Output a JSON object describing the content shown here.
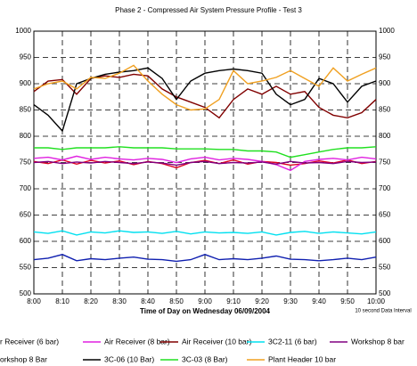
{
  "chart_data": {
    "type": "line",
    "title": "Phase 2 - Compressed Air System Pressure Profile  -  Test 3",
    "x_label": "Time of Day on Wednesday 06/09/2004",
    "note": "10 second Data Interval",
    "categories": [
      "8:00",
      null,
      "8:10",
      null,
      "8:20",
      null,
      "8:30",
      null,
      "8:40",
      null,
      "8:50",
      null,
      "9:00",
      null,
      "9:10",
      null,
      "9:20",
      null,
      "9:30",
      null,
      "9:40",
      null,
      "9:50",
      null,
      "10:00"
    ],
    "ylim": [
      500,
      1000
    ],
    "yticks": [
      500,
      550,
      600,
      650,
      700,
      750,
      800,
      850,
      900,
      950,
      1000
    ],
    "grid": true,
    "series": [
      {
        "name": "r Receiver (6 bar)",
        "color": "#e00020",
        "values": [
          752,
          748,
          755,
          747,
          754,
          749,
          753,
          746,
          752,
          748,
          740,
          750,
          754,
          748,
          755,
          747,
          752,
          750,
          745,
          748,
          753,
          749,
          755,
          748,
          752
        ]
      },
      {
        "name": "Air Receiver (8 bar)",
        "color": "#e020e0",
        "values": [
          758,
          760,
          755,
          762,
          756,
          760,
          757,
          755,
          758,
          756,
          750,
          757,
          760,
          755,
          758,
          756,
          752,
          746,
          735,
          752,
          756,
          758,
          755,
          760,
          757
        ]
      },
      {
        "name": "Air Receiver (10 bar)",
        "color": "#800000",
        "values": [
          885,
          905,
          908,
          880,
          910,
          915,
          912,
          918,
          915,
          890,
          875,
          865,
          855,
          835,
          870,
          890,
          880,
          895,
          880,
          885,
          855,
          840,
          835,
          845,
          870
        ]
      },
      {
        "name": "3C2-11 (6 bar)",
        "color": "#00e0f0",
        "values": [
          618,
          615,
          620,
          612,
          618,
          616,
          620,
          617,
          618,
          615,
          619,
          614,
          618,
          616,
          617,
          615,
          618,
          612,
          617,
          619,
          615,
          618,
          616,
          614,
          618
        ]
      },
      {
        "name": "Workshop 8 bar",
        "color": "#800080",
        "values": [
          750,
          752,
          748,
          751,
          749,
          752,
          750,
          748,
          751,
          749,
          745,
          750,
          752,
          748,
          750,
          749,
          751,
          747,
          752,
          749,
          750,
          748,
          752,
          750,
          751
        ]
      },
      {
        "name": "orkshop 8 Bar",
        "color": "#1020b0",
        "values": [
          565,
          568,
          575,
          563,
          567,
          565,
          568,
          570,
          566,
          565,
          562,
          565,
          575,
          565,
          567,
          565,
          568,
          572,
          566,
          565,
          563,
          565,
          568,
          565,
          570
        ]
      },
      {
        "name": "3C-06 (10 Bar)",
        "color": "#000000",
        "values": [
          860,
          840,
          810,
          900,
          910,
          918,
          922,
          925,
          930,
          910,
          870,
          905,
          920,
          925,
          928,
          925,
          920,
          880,
          860,
          870,
          910,
          900,
          865,
          895,
          905
        ]
      },
      {
        "name": "3C-03 (8 Bar)",
        "color": "#20e020",
        "values": [
          778,
          778,
          775,
          778,
          778,
          778,
          780,
          778,
          778,
          778,
          776,
          776,
          776,
          775,
          775,
          772,
          772,
          770,
          760,
          765,
          770,
          775,
          778,
          778,
          780
        ]
      },
      {
        "name": "Plant Header 10 bar",
        "color": "#f0a020",
        "values": [
          890,
          900,
          905,
          890,
          912,
          910,
          920,
          935,
          905,
          880,
          860,
          850,
          852,
          870,
          925,
          900,
          905,
          912,
          925,
          910,
          895,
          930,
          905,
          918,
          930
        ]
      }
    ]
  }
}
